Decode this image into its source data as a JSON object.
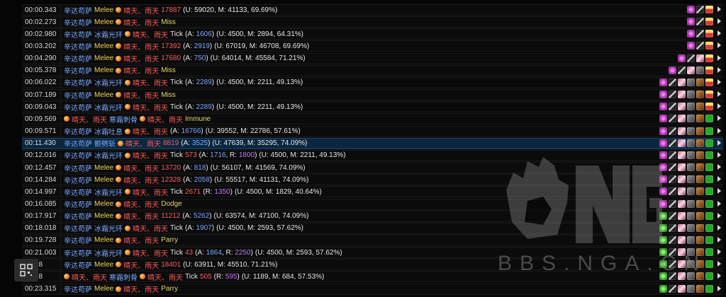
{
  "watermark": {
    "text": "BBS.NGA.CN",
    "logo": "NGA"
  },
  "qr_icon": "qr-code-icon",
  "rows": [
    {
      "ts": "00:00.343",
      "src": "辛达苟萨",
      "abl": "Melee",
      "tgt": "晴天、雨天",
      "amt": "17887",
      "a": "",
      "r": "",
      "tick": "",
      "res": "",
      "stats": "(U: 59020, M: 41133, 69.69%)",
      "icons": [
        "aura",
        "stick",
        "gift"
      ],
      "sel": false,
      "pre": []
    },
    {
      "ts": "00:02.273",
      "src": "辛达苟萨",
      "abl": "Melee",
      "tgt": "晴天、雨天",
      "amt": "",
      "a": "",
      "r": "",
      "tick": "",
      "res": "Miss",
      "stats": "",
      "icons": [
        "aura",
        "stick",
        "gift"
      ],
      "sel": false,
      "pre": []
    },
    {
      "ts": "00:02.980",
      "src": "辛达苟萨",
      "abl": "冰霜光环",
      "tgt": "晴天、雨天",
      "amt": "",
      "a": "1606",
      "r": "",
      "tick": "Tick",
      "res": "",
      "stats": "(U: 4500, M: 2894, 64.31%)",
      "icons": [
        "aura",
        "stick",
        "gift"
      ],
      "sel": false,
      "pre": []
    },
    {
      "ts": "00:03.202",
      "src": "辛达苟萨",
      "abl": "Melee",
      "tgt": "晴天、雨天",
      "amt": "17392",
      "a": "2919",
      "r": "",
      "tick": "",
      "res": "",
      "stats": "(U: 67019, M: 46708, 69.69%)",
      "icons": [
        "aura",
        "stick",
        "gift"
      ],
      "sel": false,
      "pre": []
    },
    {
      "ts": "00:04.290",
      "src": "辛达苟萨",
      "abl": "Melee",
      "tgt": "晴天、雨天",
      "amt": "17680",
      "a": "750",
      "r": "",
      "tick": "",
      "res": "",
      "stats": "(U: 64014, M: 45584, 71.21%)",
      "icons": [
        "aura",
        "stick",
        "wing",
        "gift"
      ],
      "sel": false,
      "pre": []
    },
    {
      "ts": "00:05.378",
      "src": "辛达苟萨",
      "abl": "Melee",
      "tgt": "晴天、雨天",
      "amt": "",
      "a": "",
      "r": "",
      "tick": "",
      "res": "Miss",
      "stats": "",
      "icons": [
        "aura",
        "stick",
        "wing",
        "gray",
        "gift"
      ],
      "sel": false,
      "pre": []
    },
    {
      "ts": "00:06.022",
      "src": "辛达苟萨",
      "abl": "冰霜光环",
      "tgt": "晴天、雨天",
      "amt": "",
      "a": "2289",
      "r": "",
      "tick": "Tick",
      "res": "",
      "stats": "(U: 4500, M: 2211, 49.13%)",
      "icons": [
        "aura",
        "stick",
        "wing",
        "gray",
        "rune",
        "gift"
      ],
      "sel": false,
      "pre": []
    },
    {
      "ts": "00:07.189",
      "src": "辛达苟萨",
      "abl": "Melee",
      "tgt": "晴天、雨天",
      "amt": "",
      "a": "",
      "r": "",
      "tick": "",
      "res": "Miss",
      "stats": "",
      "icons": [
        "aura",
        "stick",
        "wing",
        "gray",
        "rune",
        "gift"
      ],
      "sel": false,
      "pre": []
    },
    {
      "ts": "00:09.043",
      "src": "辛达苟萨",
      "abl": "冰霜光环",
      "tgt": "晴天、雨天",
      "amt": "",
      "a": "2289",
      "r": "",
      "tick": "Tick",
      "res": "",
      "stats": "(U: 4500, M: 2211, 49.13%)",
      "icons": [
        "aura",
        "stick",
        "wing",
        "gray",
        "rune",
        "gift"
      ],
      "sel": false,
      "pre": []
    },
    {
      "ts": "00:09.569",
      "src": "",
      "abl": "寒霜刺骨",
      "tgt": "晴天、雨天",
      "amt": "",
      "a": "",
      "r": "",
      "tick": "",
      "res": "Immune",
      "stats": "",
      "icons": [
        "aura",
        "stick",
        "wing",
        "gray",
        "rune",
        "check"
      ],
      "sel": false,
      "pre": [
        "晴天、雨天"
      ]
    },
    {
      "ts": "00:09.571",
      "src": "辛达苟萨",
      "abl": "冰霜吐息",
      "tgt": "晴天、雨天",
      "amt": "",
      "a": "16766",
      "r": "",
      "tick": "",
      "res": "",
      "stats": "(U: 39552, M: 22786, 57.61%)",
      "icons": [
        "aura",
        "stick",
        "wing",
        "gray",
        "rune",
        "check"
      ],
      "sel": false,
      "pre": []
    },
    {
      "ts": "00:11.430",
      "src": "辛达苟萨",
      "abl": "颤劈斩",
      "tgt": "晴天、雨天",
      "amt": "8819",
      "a": "3525",
      "r": "",
      "tick": "",
      "res": "",
      "stats": "(U: 47639, M: 35295, 74.09%)",
      "icons": [
        "aura",
        "stick",
        "wing",
        "gray",
        "rune",
        "check"
      ],
      "sel": true,
      "pre": []
    },
    {
      "ts": "00:12.016",
      "src": "辛达苟萨",
      "abl": "冰霜光环",
      "tgt": "晴天、雨天",
      "amt": "573",
      "a": "1716",
      "r": "1800",
      "tick": "Tick",
      "res": "",
      "stats": "(U: 4500, M: 2211, 49.13%)",
      "icons": [
        "aura",
        "stick",
        "wing",
        "gray",
        "rune",
        "check"
      ],
      "sel": false,
      "pre": []
    },
    {
      "ts": "00:12.457",
      "src": "辛达苟萨",
      "abl": "Melee",
      "tgt": "晴天、雨天",
      "amt": "13720",
      "a": "818",
      "r": "",
      "tick": "",
      "res": "",
      "stats": "(U: 56107, M: 41569, 74.09%)",
      "icons": [
        "aura",
        "stick",
        "wing",
        "gray",
        "rune",
        "check"
      ],
      "sel": false,
      "pre": []
    },
    {
      "ts": "00:14.284",
      "src": "辛达苟萨",
      "abl": "Melee",
      "tgt": "晴天、雨天",
      "amt": "12328",
      "a": "2058",
      "r": "",
      "tick": "",
      "res": "",
      "stats": "(U: 55517, M: 41131, 74.09%)",
      "icons": [
        "aura",
        "stick",
        "wing",
        "gray",
        "rune",
        "check"
      ],
      "sel": false,
      "pre": []
    },
    {
      "ts": "00:14.997",
      "src": "辛达苟萨",
      "abl": "冰霜光环",
      "tgt": "晴天、雨天",
      "amt": "2671",
      "a": "",
      "r": "1350",
      "tick": "Tick",
      "res": "",
      "stats": "(U: 4500, M: 1829, 40.64%)",
      "icons": [
        "aura",
        "stick",
        "wing",
        "gray",
        "rune",
        "check"
      ],
      "sel": false,
      "pre": []
    },
    {
      "ts": "00:16.085",
      "src": "辛达苟萨",
      "abl": "Melee",
      "tgt": "晴天、雨天",
      "amt": "",
      "a": "",
      "r": "",
      "tick": "",
      "res": "Dodge",
      "stats": "",
      "icons": [
        "aura",
        "stick",
        "wing",
        "gray",
        "rune",
        "check"
      ],
      "sel": false,
      "pre": []
    },
    {
      "ts": "00:17.917",
      "src": "辛达苟萨",
      "abl": "Melee",
      "tgt": "晴天、雨天",
      "amt": "11212",
      "a": "5262",
      "r": "",
      "tick": "",
      "res": "",
      "stats": "(U: 63574, M: 47100, 74.09%)",
      "icons": [
        "green",
        "stick",
        "wing",
        "gray",
        "rune",
        "check"
      ],
      "sel": false,
      "pre": []
    },
    {
      "ts": "00:18.018",
      "src": "辛达苟萨",
      "abl": "冰霜光环",
      "tgt": "晴天、雨天",
      "amt": "",
      "a": "1907",
      "r": "",
      "tick": "Tick",
      "res": "",
      "stats": "(U: 4500, M: 2593, 57.62%)",
      "icons": [
        "green",
        "stick",
        "wing",
        "gray",
        "rune",
        "check"
      ],
      "sel": false,
      "pre": []
    },
    {
      "ts": "00:19.728",
      "src": "辛达苟萨",
      "abl": "Melee",
      "tgt": "晴天、雨天",
      "amt": "",
      "a": "",
      "r": "",
      "tick": "",
      "res": "Parry",
      "stats": "",
      "icons": [
        "green",
        "stick",
        "wing",
        "gray",
        "rune",
        "check"
      ],
      "sel": false,
      "pre": []
    },
    {
      "ts": "00:21.003",
      "src": "辛达苟萨",
      "abl": "冰霜光环",
      "tgt": "晴天、雨天",
      "amt": "43",
      "a": "1864",
      "r": "2250",
      "tick": "Tick",
      "res": "",
      "stats": "(U: 4500, M: 2593, 57.62%)",
      "icons": [
        "green",
        "stick",
        "wing",
        "gray",
        "rune",
        "check"
      ],
      "sel": false,
      "pre": []
    },
    {
      "ts": "1.538",
      "src": "辛达苟萨",
      "abl": "Melee",
      "tgt": "晴天、雨天",
      "amt": "18401",
      "a": "",
      "r": "",
      "tick": "",
      "res": "",
      "stats": "(U: 63911, M: 45510, 71.21%)",
      "icons": [
        "green",
        "stick",
        "wing",
        "gray",
        "rune",
        "check"
      ],
      "sel": false,
      "pre": []
    },
    {
      "ts": "2.558",
      "src": "",
      "abl": "寒霜刺骨",
      "tgt": "晴天、雨天",
      "amt": "505",
      "a": "",
      "r": "595",
      "tick": "Tick",
      "res": "",
      "stats": "(U: 1189, M: 684, 57.53%)",
      "icons": [
        "green",
        "stick",
        "wing",
        "gray",
        "rune",
        "check"
      ],
      "sel": false,
      "pre": [
        "晴天、雨天"
      ]
    },
    {
      "ts": "00:23.315",
      "src": "辛达苟萨",
      "abl": "Melee",
      "tgt": "晴天、雨天",
      "amt": "",
      "a": "",
      "r": "",
      "tick": "",
      "res": "Parry",
      "stats": "",
      "icons": [
        "green",
        "stick",
        "wing",
        "gray",
        "rune",
        "check"
      ],
      "sel": false,
      "pre": []
    }
  ]
}
